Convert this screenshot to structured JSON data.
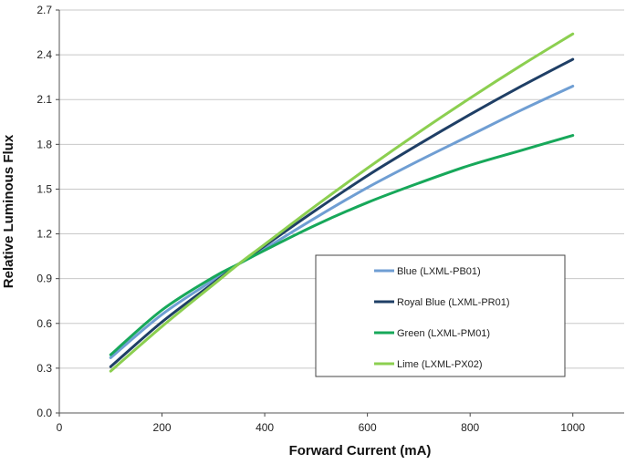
{
  "chart_data": {
    "type": "line",
    "title": "",
    "xlabel": "Forward Current (mA)",
    "ylabel": "Relative Luminous Flux",
    "xlim": [
      0,
      1100
    ],
    "ylim": [
      0,
      2.7
    ],
    "xticks": [
      "0",
      "200",
      "400",
      "600",
      "800",
      "1000"
    ],
    "yticks": [
      "0.0",
      "0.3",
      "0.6",
      "0.9",
      "1.2",
      "1.5",
      "1.8",
      "2.1",
      "2.4",
      "2.7"
    ],
    "grid": true,
    "legend_position": "center-right",
    "x": [
      100,
      200,
      300,
      350,
      400,
      500,
      600,
      700,
      800,
      900,
      1000
    ],
    "series": [
      {
        "name": "Blue (LXML-PB01)",
        "color": "#6f9ed3",
        "values": [
          0.37,
          0.66,
          0.89,
          1.0,
          1.1,
          1.31,
          1.51,
          1.69,
          1.86,
          2.03,
          2.19
        ]
      },
      {
        "name": "Royal Blue (LXML-PR01)",
        "color": "#1f3f66",
        "values": [
          0.31,
          0.61,
          0.87,
          1.0,
          1.12,
          1.36,
          1.59,
          1.8,
          2.0,
          2.19,
          2.37
        ]
      },
      {
        "name": "Green (LXML-PM01)",
        "color": "#17a85a",
        "values": [
          0.39,
          0.69,
          0.91,
          1.0,
          1.09,
          1.26,
          1.41,
          1.54,
          1.66,
          1.76,
          1.86
        ]
      },
      {
        "name": "Lime (LXML-PX02)",
        "color": "#8ccf50",
        "values": [
          0.28,
          0.58,
          0.86,
          1.0,
          1.13,
          1.39,
          1.64,
          1.88,
          2.11,
          2.33,
          2.54
        ]
      }
    ]
  }
}
